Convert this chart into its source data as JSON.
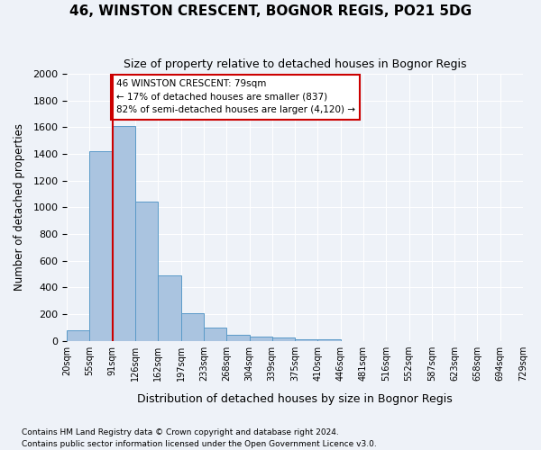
{
  "title1": "46, WINSTON CRESCENT, BOGNOR REGIS, PO21 5DG",
  "title2": "Size of property relative to detached houses in Bognor Regis",
  "xlabel": "Distribution of detached houses by size in Bognor Regis",
  "ylabel": "Number of detached properties",
  "footnote": "Contains HM Land Registry data © Crown copyright and database right 2024.\nContains public sector information licensed under the Open Government Licence v3.0.",
  "bin_labels": [
    "20sqm",
    "55sqm",
    "91sqm",
    "126sqm",
    "162sqm",
    "197sqm",
    "233sqm",
    "268sqm",
    "304sqm",
    "339sqm",
    "375sqm",
    "410sqm",
    "446sqm",
    "481sqm",
    "516sqm",
    "552sqm",
    "587sqm",
    "623sqm",
    "658sqm",
    "694sqm",
    "729sqm"
  ],
  "bar_values": [
    80,
    1420,
    1610,
    1045,
    490,
    205,
    100,
    48,
    32,
    22,
    15,
    10,
    0,
    0,
    0,
    0,
    0,
    0,
    0,
    0
  ],
  "bar_color": "#aac4e0",
  "bar_edge_color": "#5a9ac8",
  "ylim": [
    0,
    2000
  ],
  "yticks": [
    0,
    200,
    400,
    600,
    800,
    1000,
    1200,
    1400,
    1600,
    1800,
    2000
  ],
  "vline_x": 1.5,
  "vline_color": "#cc0000",
  "annotation_text": "46 WINSTON CRESCENT: 79sqm\n← 17% of detached houses are smaller (837)\n82% of semi-detached houses are larger (4,120) →",
  "annotation_box_color": "#ffffff",
  "annotation_box_edge": "#cc0000",
  "background_color": "#eef2f8"
}
